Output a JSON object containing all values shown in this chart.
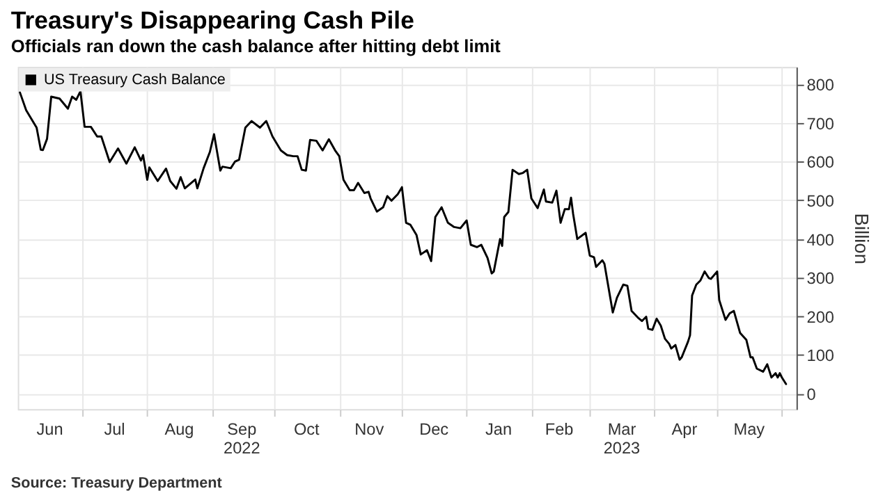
{
  "chart_data": {
    "type": "line",
    "title": "Treasury's Disappearing Cash Pile",
    "subtitle": "Officials ran down the cash balance after hitting debt limit",
    "ylabel": "Billion",
    "annotations": [
      "Source: Treasury Department"
    ],
    "x": [
      "2022-06-01",
      "2022-06-04",
      "2022-06-09",
      "2022-06-11",
      "2022-06-12",
      "2022-06-14",
      "2022-06-16",
      "2022-06-20",
      "2022-06-24",
      "2022-06-26",
      "2022-06-28",
      "2022-06-30",
      "2022-07-02",
      "2022-07-05",
      "2022-07-08",
      "2022-07-10",
      "2022-07-14",
      "2022-07-18",
      "2022-07-22",
      "2022-07-26",
      "2022-07-29",
      "2022-07-30",
      "2022-08-01",
      "2022-08-02",
      "2022-08-06",
      "2022-08-10",
      "2022-08-12",
      "2022-08-15",
      "2022-08-17",
      "2022-08-19",
      "2022-08-24",
      "2022-08-25",
      "2022-08-28",
      "2022-08-31",
      "2022-09-02",
      "2022-09-05",
      "2022-09-06",
      "2022-09-10",
      "2022-09-12",
      "2022-09-14",
      "2022-09-17",
      "2022-09-20",
      "2022-09-24",
      "2022-09-27",
      "2022-09-30",
      "2022-10-04",
      "2022-10-07",
      "2022-10-10",
      "2022-10-12",
      "2022-10-14",
      "2022-10-16",
      "2022-10-18",
      "2022-10-21",
      "2022-10-24",
      "2022-10-27",
      "2022-10-30",
      "2022-11-01",
      "2022-11-03",
      "2022-11-06",
      "2022-11-08",
      "2022-11-10",
      "2022-11-13",
      "2022-11-15",
      "2022-11-16",
      "2022-11-19",
      "2022-11-22",
      "2022-11-24",
      "2022-11-26",
      "2022-11-29",
      "2022-12-01",
      "2022-12-03",
      "2022-12-05",
      "2022-12-08",
      "2022-12-10",
      "2022-12-13",
      "2022-12-15",
      "2022-12-17",
      "2022-12-20",
      "2022-12-23",
      "2022-12-26",
      "2022-12-29",
      "2023-01-01",
      "2023-01-03",
      "2023-01-06",
      "2023-01-08",
      "2023-01-11",
      "2023-01-13",
      "2023-01-14",
      "2023-01-17",
      "2023-01-18",
      "2023-01-19",
      "2023-01-21",
      "2023-01-23",
      "2023-01-26",
      "2023-01-28",
      "2023-01-30",
      "2023-02-01",
      "2023-02-04",
      "2023-02-07",
      "2023-02-08",
      "2023-02-11",
      "2023-02-13",
      "2023-02-15",
      "2023-02-17",
      "2023-02-19",
      "2023-02-20",
      "2023-02-21",
      "2023-02-23",
      "2023-02-27",
      "2023-03-01",
      "2023-03-03",
      "2023-03-04",
      "2023-03-07",
      "2023-03-08",
      "2023-03-12",
      "2023-03-14",
      "2023-03-17",
      "2023-03-19",
      "2023-03-21",
      "2023-03-24",
      "2023-03-26",
      "2023-03-28",
      "2023-03-29",
      "2023-03-31",
      "2023-04-02",
      "2023-04-04",
      "2023-04-06",
      "2023-04-08",
      "2023-04-09",
      "2023-04-11",
      "2023-04-13",
      "2023-04-14",
      "2023-04-17",
      "2023-04-18",
      "2023-04-19",
      "2023-04-21",
      "2023-04-23",
      "2023-04-25",
      "2023-04-27",
      "2023-04-28",
      "2023-05-01",
      "2023-05-02",
      "2023-05-05",
      "2023-05-07",
      "2023-05-09",
      "2023-05-12",
      "2023-05-15",
      "2023-05-17",
      "2023-05-18",
      "2023-05-20",
      "2023-05-23",
      "2023-05-25",
      "2023-05-27",
      "2023-05-29",
      "2023-05-30",
      "2023-05-31",
      "2023-06-01",
      "2023-06-03"
    ],
    "series": [
      {
        "name": "US Treasury Cash Balance",
        "color": "#000000",
        "values": [
          779,
          733,
          688,
          631,
          630,
          659,
          768,
          763,
          737,
          768,
          760,
          782,
          690,
          690,
          665,
          665,
          599,
          634,
          595,
          637,
          603,
          617,
          553,
          585,
          550,
          582,
          550,
          530,
          560,
          531,
          554,
          531,
          583,
          625,
          671,
          577,
          587,
          583,
          600,
          605,
          688,
          705,
          688,
          705,
          665,
          629,
          617,
          614,
          614,
          579,
          577,
          656,
          654,
          629,
          658,
          629,
          614,
          553,
          526,
          526,
          545,
          519,
          522,
          505,
          471,
          482,
          511,
          499,
          516,
          534,
          442,
          437,
          410,
          360,
          371,
          343,
          457,
          482,
          442,
          431,
          428,
          448,
          385,
          379,
          385,
          351,
          311,
          316,
          400,
          382,
          457,
          470,
          579,
          568,
          571,
          579,
          505,
          480,
          528,
          497,
          494,
          525,
          442,
          477,
          477,
          507,
          465,
          400,
          416,
          357,
          353,
          328,
          345,
          336,
          210,
          248,
          282,
          279,
          214,
          197,
          188,
          199,
          168,
          165,
          194,
          176,
          142,
          129,
          117,
          126,
          88,
          94,
          134,
          151,
          254,
          282,
          293,
          316,
          299,
          297,
          316,
          242,
          191,
          208,
          214,
          157,
          139,
          94,
          94,
          65,
          57,
          76,
          42,
          53,
          42,
          53,
          42,
          25
        ]
      }
    ],
    "xlim": [
      "2022-05-31",
      "2023-06-08"
    ],
    "xticks": [
      {
        "value": "2022-06-15",
        "label": "Jun"
      },
      {
        "value": "2022-07-01",
        "label": null
      },
      {
        "value": "2022-07-16",
        "label": "Jul"
      },
      {
        "value": "2022-08-01",
        "label": null
      },
      {
        "value": "2022-08-16",
        "label": "Aug"
      },
      {
        "value": "2022-09-01",
        "label": null
      },
      {
        "value": "2022-09-15",
        "label": "Sep\n2022"
      },
      {
        "value": "2022-10-01",
        "label": null
      },
      {
        "value": "2022-10-16",
        "label": "Oct"
      },
      {
        "value": "2022-11-01",
        "label": null
      },
      {
        "value": "2022-11-15",
        "label": "Nov"
      },
      {
        "value": "2022-12-01",
        "label": null
      },
      {
        "value": "2022-12-16",
        "label": "Dec"
      },
      {
        "value": "2023-01-01",
        "label": null
      },
      {
        "value": "2023-01-16",
        "label": "Jan"
      },
      {
        "value": "2023-02-01",
        "label": null
      },
      {
        "value": "2023-02-14",
        "label": "Feb"
      },
      {
        "value": "2023-03-01",
        "label": null
      },
      {
        "value": "2023-03-16",
        "label": "Mar\n2023"
      },
      {
        "value": "2023-04-01",
        "label": null
      },
      {
        "value": "2023-04-15",
        "label": "Apr"
      },
      {
        "value": "2023-05-01",
        "label": null
      },
      {
        "value": "2023-05-16",
        "label": "May"
      },
      {
        "value": "2023-06-01",
        "label": null
      }
    ],
    "ylim": [
      -40,
      845
    ],
    "yticks": [
      0,
      100,
      200,
      300,
      400,
      500,
      600,
      700,
      800
    ],
    "grid": true,
    "legend": "top left",
    "marker": "none",
    "line_style": "solid"
  }
}
